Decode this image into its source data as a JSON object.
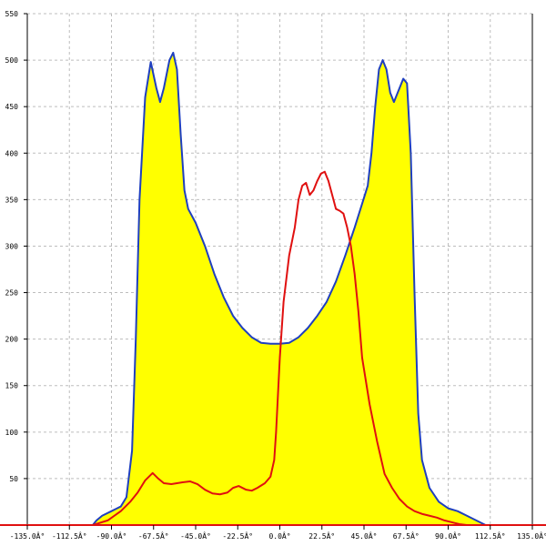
{
  "chart_data": {
    "type": "area",
    "title": "",
    "xlabel": "",
    "ylabel": "",
    "xlim": [
      -135,
      135
    ],
    "ylim": [
      0,
      550
    ],
    "grid": true,
    "x_tick_values": [
      -135,
      -112.5,
      -90,
      -67.5,
      -45,
      -22.5,
      0,
      22.5,
      45,
      67.5,
      90,
      112.5,
      135
    ],
    "x_tick_labels": [
      "-135.0Â°",
      "-112.5Â°",
      "-90.0Â°",
      "-67.5Â°",
      "-45.0Â°",
      "-22.5Â°",
      "0.0Â°",
      "22.5Â°",
      "45.0Â°",
      "67.5Â°",
      "90.0Â°",
      "112.5Â°",
      "135.0Â°"
    ],
    "y_tick_values": [
      50,
      100,
      150,
      200,
      250,
      300,
      350,
      400,
      450,
      500,
      550
    ],
    "y_tick_labels": [
      "50",
      "100",
      "150",
      "200",
      "250",
      "300",
      "350",
      "400",
      "450",
      "500",
      "550"
    ],
    "series": [
      {
        "color": "#1f3fbf",
        "fill": "#ffff00",
        "points": [
          [
            -135,
            0
          ],
          [
            -100,
            0
          ],
          [
            -98,
            5
          ],
          [
            -95,
            10
          ],
          [
            -90,
            15
          ],
          [
            -85,
            20
          ],
          [
            -82,
            30
          ],
          [
            -79,
            80
          ],
          [
            -77,
            200
          ],
          [
            -75,
            350
          ],
          [
            -72,
            460
          ],
          [
            -69,
            498
          ],
          [
            -66,
            470
          ],
          [
            -64,
            455
          ],
          [
            -62,
            470
          ],
          [
            -59,
            500
          ],
          [
            -57,
            508
          ],
          [
            -55,
            490
          ],
          [
            -53,
            420
          ],
          [
            -51,
            360
          ],
          [
            -49,
            340
          ],
          [
            -45,
            325
          ],
          [
            -40,
            300
          ],
          [
            -35,
            270
          ],
          [
            -30,
            245
          ],
          [
            -25,
            225
          ],
          [
            -20,
            212
          ],
          [
            -15,
            202
          ],
          [
            -10,
            196
          ],
          [
            -5,
            195
          ],
          [
            0,
            195
          ],
          [
            5,
            196
          ],
          [
            10,
            202
          ],
          [
            15,
            212
          ],
          [
            20,
            225
          ],
          [
            25,
            240
          ],
          [
            30,
            262
          ],
          [
            35,
            290
          ],
          [
            40,
            320
          ],
          [
            45,
            352
          ],
          [
            47,
            365
          ],
          [
            49,
            400
          ],
          [
            51,
            450
          ],
          [
            53,
            490
          ],
          [
            55,
            500
          ],
          [
            57,
            490
          ],
          [
            59,
            465
          ],
          [
            61,
            455
          ],
          [
            63,
            465
          ],
          [
            66,
            480
          ],
          [
            68,
            475
          ],
          [
            70,
            400
          ],
          [
            72,
            250
          ],
          [
            74,
            120
          ],
          [
            76,
            70
          ],
          [
            80,
            40
          ],
          [
            85,
            25
          ],
          [
            90,
            18
          ],
          [
            95,
            15
          ],
          [
            100,
            10
          ],
          [
            105,
            5
          ],
          [
            110,
            0
          ],
          [
            135,
            0
          ]
        ]
      },
      {
        "color": "#e01010",
        "fill": "none",
        "points": [
          [
            -135,
            0
          ],
          [
            -100,
            0
          ],
          [
            -92,
            5
          ],
          [
            -85,
            15
          ],
          [
            -80,
            25
          ],
          [
            -76,
            35
          ],
          [
            -72,
            48
          ],
          [
            -68,
            56
          ],
          [
            -65,
            50
          ],
          [
            -62,
            45
          ],
          [
            -58,
            44
          ],
          [
            -55,
            45
          ],
          [
            -52,
            46
          ],
          [
            -48,
            47
          ],
          [
            -44,
            44
          ],
          [
            -40,
            38
          ],
          [
            -36,
            34
          ],
          [
            -32,
            33
          ],
          [
            -28,
            35
          ],
          [
            -25,
            40
          ],
          [
            -22,
            42
          ],
          [
            -18,
            38
          ],
          [
            -15,
            37
          ],
          [
            -12,
            40
          ],
          [
            -8,
            45
          ],
          [
            -5,
            52
          ],
          [
            -3,
            70
          ],
          [
            -2,
            100
          ],
          [
            0,
            180
          ],
          [
            2,
            240
          ],
          [
            5,
            290
          ],
          [
            8,
            320
          ],
          [
            10,
            350
          ],
          [
            12,
            365
          ],
          [
            14,
            368
          ],
          [
            16,
            355
          ],
          [
            18,
            360
          ],
          [
            20,
            370
          ],
          [
            22,
            378
          ],
          [
            24,
            380
          ],
          [
            26,
            370
          ],
          [
            28,
            355
          ],
          [
            30,
            340
          ],
          [
            32,
            338
          ],
          [
            34,
            335
          ],
          [
            36,
            320
          ],
          [
            38,
            300
          ],
          [
            40,
            270
          ],
          [
            42,
            230
          ],
          [
            44,
            180
          ],
          [
            48,
            130
          ],
          [
            52,
            90
          ],
          [
            56,
            55
          ],
          [
            60,
            40
          ],
          [
            64,
            28
          ],
          [
            68,
            20
          ],
          [
            72,
            15
          ],
          [
            76,
            12
          ],
          [
            80,
            10
          ],
          [
            84,
            8
          ],
          [
            88,
            5
          ],
          [
            92,
            3
          ],
          [
            96,
            1
          ],
          [
            100,
            0
          ],
          [
            135,
            0
          ]
        ]
      }
    ]
  }
}
